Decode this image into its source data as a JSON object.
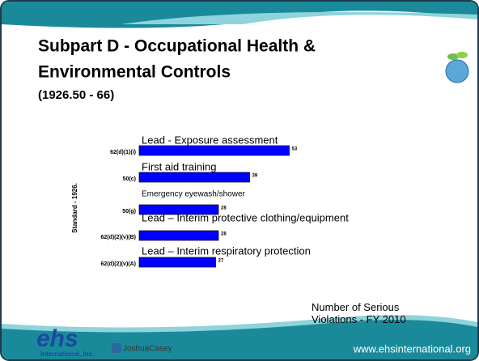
{
  "chart_data": {
    "type": "bar",
    "orientation": "horizontal",
    "title": "Subpart D - Occupational Health & Environmental Controls",
    "subtitle": "(1926.50 - 66)",
    "y_label": "Standard - 1926.",
    "note": "Number of Serious Violations - FY 2010",
    "categories": [
      "62(d)(1)(i)",
      "50(c)",
      "50(g)",
      "62(d)(2)(v)(B)",
      "62(d)(2)(v)(A)"
    ],
    "values": [
      53,
      39,
      28,
      28,
      27
    ],
    "annotations": [
      "Lead - Exposure assessment",
      "First aid training",
      "Emergency eyewash/shower",
      "Lead – Interim protective clothing/equipment",
      "Lead – Interim respiratory protection"
    ],
    "color": "#0000ff"
  },
  "footer": {
    "url": "www.ehsinternational.org",
    "logo": "ehs",
    "logo_sub": "International, Inc.",
    "partner": "JoshuaCasey"
  }
}
